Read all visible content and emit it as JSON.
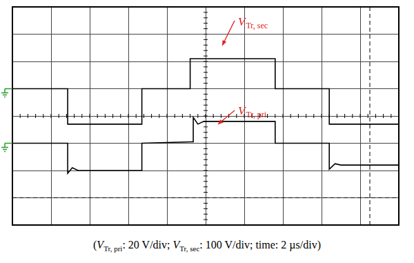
{
  "chart_data": {
    "type": "line",
    "tick_labels": false,
    "grid": true,
    "x": [
      0,
      2.86,
      2.86,
      3.1,
      3.4,
      6.7,
      6.7,
      9.2,
      9.2,
      9.36,
      9.36,
      9.6,
      9.9,
      13.6,
      13.6,
      16.4,
      16.4,
      16.7,
      17,
      20
    ],
    "xlim": [
      0,
      20
    ],
    "xticks": [
      0,
      2,
      4,
      6,
      8,
      10,
      12,
      14,
      16,
      18,
      20
    ],
    "ylim": [
      -500,
      300
    ],
    "yticks": [
      -500,
      -400,
      -300,
      -200,
      -100,
      0,
      100,
      200,
      300
    ],
    "y2lim": [
      -60,
      100
    ],
    "y2ticks": [
      -60,
      -40,
      -20,
      0,
      20,
      40,
      60,
      80,
      100
    ],
    "series": [
      {
        "label": {
          "text": "V",
          "sub": "Tr, sec"
        },
        "color": "#000000",
        "reference": 0,
        "values": [
          0,
          0,
          -130,
          -130,
          -130,
          -130,
          0,
          0,
          110,
          110,
          110,
          110,
          110,
          110,
          0,
          0,
          -130,
          -130,
          -130,
          -130
        ]
      },
      {
        "label": {
          "text": "V",
          "sub": "Tr, pri"
        },
        "color": "#000000",
        "axis": "y2",
        "reference": 0,
        "values": [
          0,
          0,
          -22,
          -18,
          -20,
          -20,
          0,
          1,
          1,
          1,
          19,
          14,
          16,
          16,
          0,
          0,
          -19,
          -15,
          -16,
          -16
        ]
      }
    ],
    "cursors": [
      {
        "axis": "x",
        "value": 18.5
      },
      {
        "axis": "y",
        "value": -400
      }
    ],
    "caption": [
      {
        "text": "("
      },
      {
        "text": "V",
        "sub": "Tr, pri"
      },
      {
        "text": ": 20 V/div; "
      },
      {
        "text": "V",
        "sub": "Tr, sec"
      },
      {
        "text": ": 100 V/div; time: 2 µs/div)"
      }
    ]
  }
}
